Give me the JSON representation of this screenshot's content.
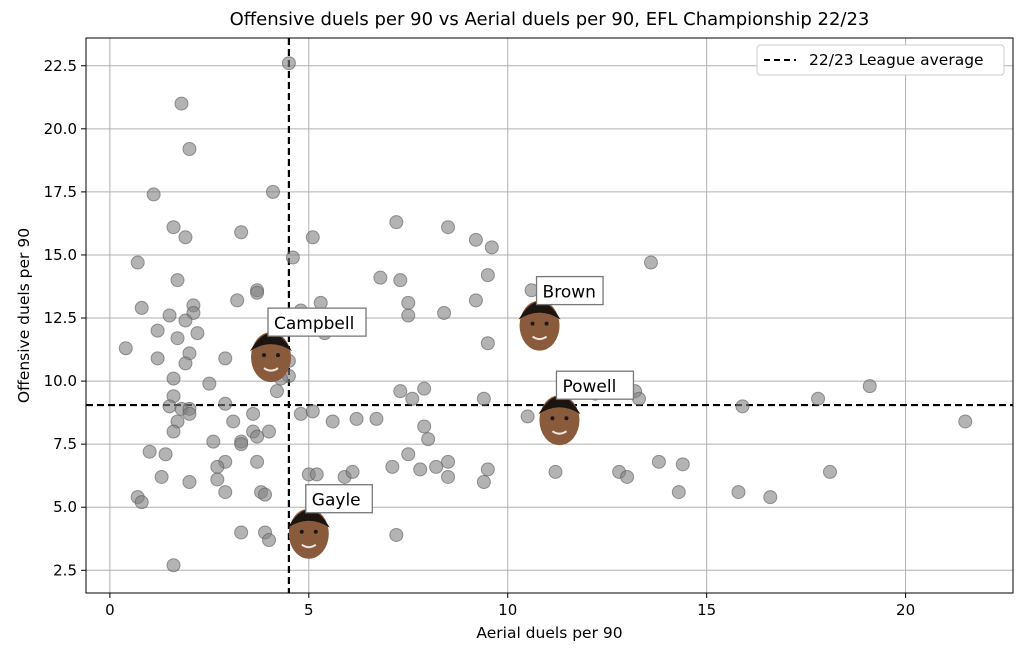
{
  "chart_data": {
    "type": "scatter",
    "title": "Offensive duels per 90 vs Aerial duels per 90, EFL Championship 22/23",
    "xlabel": "Aerial duels per 90",
    "ylabel": "Offensive duels per 90",
    "xlim": [
      -0.6,
      22.7
    ],
    "ylim": [
      1.6,
      23.6
    ],
    "x_ticks": [
      0,
      5,
      10,
      15,
      20
    ],
    "y_ticks": [
      2.5,
      5.0,
      7.5,
      10.0,
      12.5,
      15.0,
      17.5,
      20.0,
      22.5
    ],
    "x_tick_labels": [
      "0",
      "5",
      "10",
      "15",
      "20"
    ],
    "y_tick_labels": [
      "2.5",
      "5.0",
      "7.5",
      "10.0",
      "12.5",
      "15.0",
      "17.5",
      "20.0",
      "22.5"
    ],
    "grid": true,
    "league_average": {
      "x": 4.5,
      "y": 9.05
    },
    "legend": {
      "label": "22/23 League average",
      "position": "top-right"
    },
    "marker_color": "#808080",
    "average_line_color": "#000000",
    "series": [
      {
        "points": [
          [
            4.5,
            22.6
          ],
          [
            1.8,
            21.0
          ],
          [
            2.0,
            19.2
          ],
          [
            1.1,
            17.4
          ],
          [
            4.1,
            17.5
          ],
          [
            1.6,
            16.1
          ],
          [
            3.3,
            15.9
          ],
          [
            1.9,
            15.7
          ],
          [
            0.7,
            14.7
          ],
          [
            1.7,
            14.0
          ],
          [
            3.7,
            13.6
          ],
          [
            3.7,
            13.5
          ],
          [
            3.2,
            13.2
          ],
          [
            2.1,
            13.0
          ],
          [
            0.8,
            12.9
          ],
          [
            2.1,
            12.7
          ],
          [
            1.5,
            12.6
          ],
          [
            1.9,
            12.4
          ],
          [
            2.2,
            11.9
          ],
          [
            1.2,
            12.0
          ],
          [
            1.7,
            11.7
          ],
          [
            0.4,
            11.3
          ],
          [
            2.0,
            11.1
          ],
          [
            1.2,
            10.9
          ],
          [
            1.9,
            10.7
          ],
          [
            2.9,
            10.9
          ],
          [
            1.6,
            10.1
          ],
          [
            2.5,
            9.9
          ],
          [
            4.2,
            9.6
          ],
          [
            1.6,
            9.4
          ],
          [
            1.8,
            8.9
          ],
          [
            2.0,
            8.9
          ],
          [
            2.0,
            8.7
          ],
          [
            1.5,
            9.0
          ],
          [
            2.9,
            9.1
          ],
          [
            1.7,
            8.4
          ],
          [
            3.6,
            8.7
          ],
          [
            3.1,
            8.4
          ],
          [
            1.6,
            8.0
          ],
          [
            3.6,
            8.0
          ],
          [
            3.7,
            7.8
          ],
          [
            3.3,
            7.6
          ],
          [
            2.6,
            7.6
          ],
          [
            3.3,
            7.5
          ],
          [
            4.0,
            8.0
          ],
          [
            1.0,
            7.2
          ],
          [
            1.4,
            7.1
          ],
          [
            3.7,
            6.8
          ],
          [
            2.9,
            6.8
          ],
          [
            2.7,
            6.6
          ],
          [
            1.3,
            6.2
          ],
          [
            2.7,
            6.1
          ],
          [
            2.0,
            6.0
          ],
          [
            2.9,
            5.6
          ],
          [
            3.8,
            5.6
          ],
          [
            3.9,
            5.5
          ],
          [
            0.7,
            5.4
          ],
          [
            0.8,
            5.2
          ],
          [
            3.3,
            4.0
          ],
          [
            3.9,
            4.0
          ],
          [
            4.0,
            3.7
          ],
          [
            1.6,
            2.7
          ],
          [
            4.6,
            14.9
          ],
          [
            5.1,
            15.7
          ],
          [
            5.3,
            13.1
          ],
          [
            4.8,
            12.8
          ],
          [
            5.4,
            11.9
          ],
          [
            4.5,
            10.8
          ],
          [
            4.5,
            10.2
          ],
          [
            4.3,
            10.1
          ],
          [
            4.8,
            8.7
          ],
          [
            5.1,
            8.8
          ],
          [
            5.6,
            8.4
          ],
          [
            6.2,
            8.5
          ],
          [
            6.7,
            8.5
          ],
          [
            5.0,
            6.3
          ],
          [
            5.2,
            6.3
          ],
          [
            5.9,
            6.2
          ],
          [
            6.1,
            6.4
          ],
          [
            7.2,
            16.3
          ],
          [
            6.8,
            14.1
          ],
          [
            7.3,
            14.0
          ],
          [
            7.5,
            13.1
          ],
          [
            7.5,
            12.6
          ],
          [
            7.3,
            9.6
          ],
          [
            7.6,
            9.3
          ],
          [
            7.9,
            9.7
          ],
          [
            7.9,
            8.2
          ],
          [
            8.0,
            7.7
          ],
          [
            7.5,
            7.1
          ],
          [
            7.1,
            6.6
          ],
          [
            7.8,
            6.5
          ],
          [
            8.2,
            6.6
          ],
          [
            8.5,
            6.8
          ],
          [
            8.5,
            6.2
          ],
          [
            7.2,
            3.9
          ],
          [
            8.5,
            16.1
          ],
          [
            9.2,
            15.6
          ],
          [
            9.6,
            15.3
          ],
          [
            9.5,
            14.2
          ],
          [
            9.2,
            13.2
          ],
          [
            8.4,
            12.7
          ],
          [
            9.5,
            11.5
          ],
          [
            9.4,
            9.3
          ],
          [
            9.5,
            6.5
          ],
          [
            9.4,
            6.0
          ],
          [
            10.6,
            13.6
          ],
          [
            10.5,
            8.6
          ],
          [
            11.2,
            6.4
          ],
          [
            12.2,
            9.5
          ],
          [
            13.0,
            9.7
          ],
          [
            13.2,
            9.6
          ],
          [
            13.3,
            9.3
          ],
          [
            12.8,
            6.4
          ],
          [
            13.0,
            6.2
          ],
          [
            13.6,
            14.7
          ],
          [
            13.8,
            6.8
          ],
          [
            14.4,
            6.7
          ],
          [
            14.3,
            5.6
          ],
          [
            15.9,
            9.0
          ],
          [
            15.8,
            5.6
          ],
          [
            16.6,
            5.4
          ],
          [
            17.8,
            9.3
          ],
          [
            18.1,
            6.4
          ],
          [
            19.1,
            9.8
          ],
          [
            21.5,
            8.4
          ]
        ]
      }
    ],
    "annotations": [
      {
        "label": "Campbell",
        "x": 4.05,
        "y": 10.95
      },
      {
        "label": "Brown",
        "x": 10.8,
        "y": 12.2
      },
      {
        "label": "Powell",
        "x": 11.3,
        "y": 8.45
      },
      {
        "label": "Gayle",
        "x": 5.0,
        "y": 3.95
      }
    ]
  }
}
